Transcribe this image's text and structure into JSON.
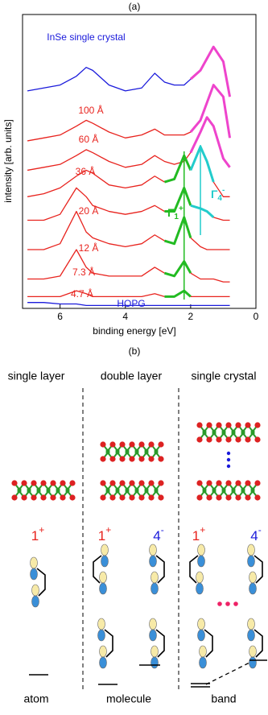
{
  "chart_data": {
    "type": "line",
    "panel_label": "(a)",
    "xlabel": "binding energy [eV]",
    "ylabel": "intensity [arb. units]",
    "xlim": [
      7.15,
      0
    ],
    "xticks": [
      6,
      4,
      2,
      0
    ],
    "ylim": [
      0,
      10
    ],
    "x": [
      7.0,
      6.5,
      6.0,
      5.5,
      5.2,
      5.0,
      4.5,
      4.0,
      3.5,
      3.1,
      2.8,
      2.5,
      2.2,
      2.0,
      1.7,
      1.5,
      1.3,
      1.0,
      0.8
    ],
    "series": [
      {
        "name": "InSe single crystal",
        "color": "#1a1adb",
        "values": [
          7.4,
          7.5,
          7.6,
          7.9,
          8.2,
          8.1,
          7.6,
          7.4,
          7.5,
          8.0,
          7.7,
          7.6,
          7.6,
          7.8,
          8.1,
          8.5,
          8.9,
          8.4,
          7.2
        ],
        "point_colors": [
          "#1a1adb",
          "#1a1adb",
          "#1a1adb",
          "#1a1adb",
          "#1a1adb",
          "#1a1adb",
          "#1a1adb",
          "#1a1adb",
          "#1a1adb",
          "#1a1adb",
          "#1a1adb",
          "#1a1adb",
          "#1a1adb",
          "#1a1adb",
          "#ee44cc",
          "#ee44cc",
          "#ee44cc",
          "#ee44cc",
          "#ee44cc"
        ]
      },
      {
        "name": "100 Å",
        "color": "#e8231e",
        "values": [
          5.7,
          5.8,
          5.9,
          6.2,
          6.4,
          6.3,
          6.0,
          5.8,
          5.9,
          6.1,
          5.9,
          5.9,
          5.9,
          6.0,
          6.4,
          7.0,
          7.6,
          7.2,
          5.8
        ],
        "point_colors": [
          "#e8231e",
          "#e8231e",
          "#e8231e",
          "#e8231e",
          "#e8231e",
          "#e8231e",
          "#e8231e",
          "#e8231e",
          "#e8231e",
          "#e8231e",
          "#e8231e",
          "#e8231e",
          "#e8231e",
          "#e8231e",
          "#ee44cc",
          "#ee44cc",
          "#ee44cc",
          "#ee44cc",
          "#ee44cc"
        ]
      },
      {
        "name": "60 Å",
        "color": "#e8231e",
        "values": [
          4.7,
          4.8,
          4.9,
          5.2,
          5.4,
          5.3,
          5.0,
          4.8,
          4.9,
          5.2,
          5.0,
          4.9,
          5.0,
          5.3,
          6.0,
          6.5,
          6.2,
          5.1,
          4.8
        ],
        "point_colors": [
          "#e8231e",
          "#e8231e",
          "#e8231e",
          "#e8231e",
          "#e8231e",
          "#e8231e",
          "#e8231e",
          "#e8231e",
          "#e8231e",
          "#e8231e",
          "#e8231e",
          "#e8231e",
          "#e8231e",
          "#e8231e",
          "#ee44cc",
          "#ee44cc",
          "#ee44cc",
          "#ee44cc",
          "#ee44cc"
        ]
      },
      {
        "name": "36 Å",
        "color": "#e8231e",
        "values": [
          3.8,
          3.9,
          4.1,
          4.5,
          4.7,
          4.6,
          4.2,
          4.1,
          4.2,
          4.5,
          4.3,
          4.4,
          5.2,
          4.7,
          5.5,
          5.0,
          4.3,
          3.8,
          3.8
        ],
        "point_colors": [
          "#e8231e",
          "#e8231e",
          "#e8231e",
          "#e8231e",
          "#e8231e",
          "#e8231e",
          "#e8231e",
          "#e8231e",
          "#e8231e",
          "#e8231e",
          "#e8231e",
          "#22bb22",
          "#22bb22",
          "#22bb22",
          "#22cccc",
          "#22cccc",
          "#22cccc",
          "#e8231e",
          "#e8231e"
        ]
      },
      {
        "name": "20 Å",
        "color": "#e8231e",
        "values": [
          3.0,
          3.0,
          3.2,
          4.1,
          3.8,
          3.5,
          3.3,
          3.2,
          3.3,
          3.5,
          3.3,
          3.3,
          4.1,
          3.5,
          3.4,
          3.3,
          3.1,
          3.0,
          3.0
        ],
        "point_colors": [
          "#e8231e",
          "#e8231e",
          "#e8231e",
          "#e8231e",
          "#e8231e",
          "#e8231e",
          "#e8231e",
          "#e8231e",
          "#e8231e",
          "#e8231e",
          "#e8231e",
          "#22bb22",
          "#22bb22",
          "#22bb22",
          "#22cccc",
          "#22cccc",
          "#22cccc",
          "#e8231e",
          "#e8231e"
        ]
      },
      {
        "name": "12 Å",
        "color": "#e8231e",
        "values": [
          2.0,
          2.0,
          2.2,
          3.3,
          2.6,
          2.4,
          2.2,
          2.1,
          2.2,
          2.5,
          2.3,
          2.2,
          3.1,
          2.4,
          2.1,
          2.0,
          2.0,
          2.0,
          2.0
        ],
        "point_colors": [
          "#e8231e",
          "#e8231e",
          "#e8231e",
          "#e8231e",
          "#e8231e",
          "#e8231e",
          "#e8231e",
          "#e8231e",
          "#e8231e",
          "#e8231e",
          "#e8231e",
          "#22bb22",
          "#22bb22",
          "#22bb22",
          "#e8231e",
          "#e8231e",
          "#e8231e",
          "#e8231e",
          "#e8231e"
        ]
      },
      {
        "name": "7.3 Å",
        "color": "#e8231e",
        "values": [
          1.0,
          1.0,
          1.1,
          2.0,
          1.4,
          1.2,
          1.1,
          1.1,
          1.1,
          1.4,
          1.2,
          1.1,
          1.6,
          1.2,
          1.0,
          1.0,
          1.0,
          0.9,
          0.9
        ],
        "point_colors": [
          "#e8231e",
          "#e8231e",
          "#e8231e",
          "#e8231e",
          "#e8231e",
          "#e8231e",
          "#e8231e",
          "#e8231e",
          "#e8231e",
          "#e8231e",
          "#e8231e",
          "#22bb22",
          "#22bb22",
          "#22bb22",
          "#e8231e",
          "#e8231e",
          "#e8231e",
          "#e8231e",
          "#e8231e"
        ]
      },
      {
        "name": "4.7 Å",
        "color": "#e8231e",
        "values": [
          0.4,
          0.4,
          0.4,
          0.6,
          0.5,
          0.4,
          0.4,
          0.4,
          0.4,
          0.5,
          0.4,
          0.4,
          0.6,
          0.4,
          0.4,
          0.4,
          0.4,
          0.4,
          0.4
        ],
        "point_colors": [
          "#e8231e",
          "#e8231e",
          "#e8231e",
          "#e8231e",
          "#e8231e",
          "#e8231e",
          "#e8231e",
          "#e8231e",
          "#e8231e",
          "#e8231e",
          "#e8231e",
          "#22bb22",
          "#22bb22",
          "#22bb22",
          "#e8231e",
          "#e8231e",
          "#e8231e",
          "#e8231e",
          "#e8231e"
        ]
      },
      {
        "name": "HOPG",
        "color": "#1a1adb",
        "values": [
          0.2,
          0.2,
          0.15,
          0.15,
          0.1,
          0.1,
          0.1,
          0.1,
          0.1,
          0.1,
          0.1,
          0.1,
          0.1,
          0.1,
          0.1,
          0.1,
          0.1,
          0.1,
          0.1
        ],
        "point_colors": [
          "#1a1adb",
          "#1a1adb",
          "#1a1adb",
          "#1a1adb",
          "#1a1adb",
          "#1a1adb",
          "#1a1adb",
          "#1a1adb",
          "#1a1adb",
          "#1a1adb",
          "#1a1adb",
          "#1a1adb",
          "#1a1adb",
          "#1a1adb",
          "#1a1adb",
          "#1a1adb",
          "#1a1adb",
          "#1a1adb",
          "#1a1adb"
        ]
      }
    ],
    "markers": [
      {
        "symbol": "Γ",
        "sub": "1",
        "sup": "+",
        "x": 2.2,
        "color": "#22bb22"
      },
      {
        "symbol": "Γ",
        "sub": "4",
        "sup": "-",
        "x": 1.7,
        "color": "#22cccc"
      }
    ]
  },
  "diagram": {
    "label": "(b)",
    "columns": [
      {
        "title": "single layer",
        "footer": "atom",
        "states": [
          {
            "n": "1",
            "sign": "+",
            "color": "#e8231e"
          }
        ]
      },
      {
        "title": "double layer",
        "footer": "molecule",
        "states": [
          {
            "n": "1",
            "sign": "+",
            "color": "#e8231e"
          },
          {
            "n": "4",
            "sign": "-",
            "color": "#1a1adb"
          }
        ]
      },
      {
        "title": "single crystal",
        "footer": "band",
        "states": [
          {
            "n": "1",
            "sign": "+",
            "color": "#e8231e"
          },
          {
            "n": "4",
            "sign": "-",
            "color": "#1a1adb"
          }
        ]
      }
    ]
  }
}
